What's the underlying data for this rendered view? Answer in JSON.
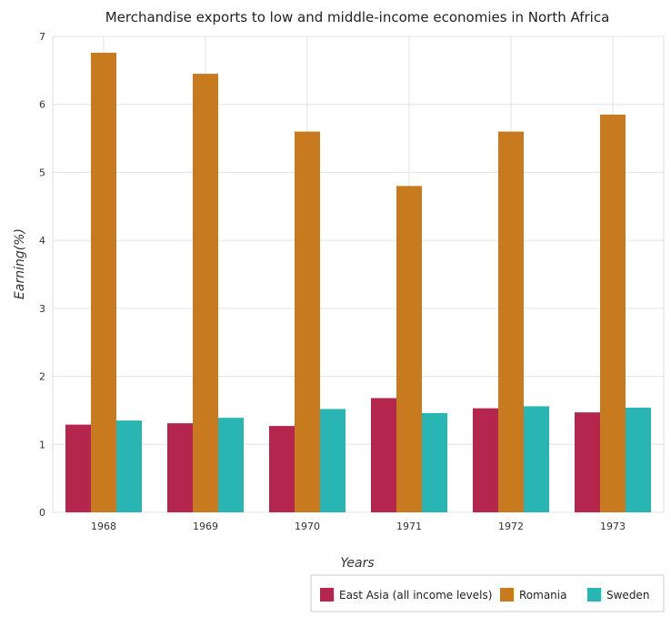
{
  "chart_data": {
    "type": "bar",
    "title": "Merchandise exports to low and middle-income economies in North Africa",
    "xlabel": "Years",
    "ylabel": "Earning(%)",
    "ylim": [
      0,
      7
    ],
    "yticks": [
      "0",
      "1",
      "2",
      "3",
      "4",
      "5",
      "6",
      "7"
    ],
    "categories": [
      "1968",
      "1969",
      "1970",
      "1971",
      "1972",
      "1973"
    ],
    "grid": true,
    "legend_position": "bottom-right",
    "series": [
      {
        "name": "East Asia (all income levels)",
        "color": "#b5264f",
        "values": [
          1.29,
          1.31,
          1.27,
          1.68,
          1.53,
          1.47
        ]
      },
      {
        "name": "Romania",
        "color": "#c87a1e",
        "values": [
          6.76,
          6.45,
          5.6,
          4.8,
          5.6,
          5.85
        ]
      },
      {
        "name": "Sweden",
        "color": "#2ab5b5",
        "values": [
          1.35,
          1.39,
          1.52,
          1.46,
          1.56,
          1.54
        ]
      }
    ]
  }
}
